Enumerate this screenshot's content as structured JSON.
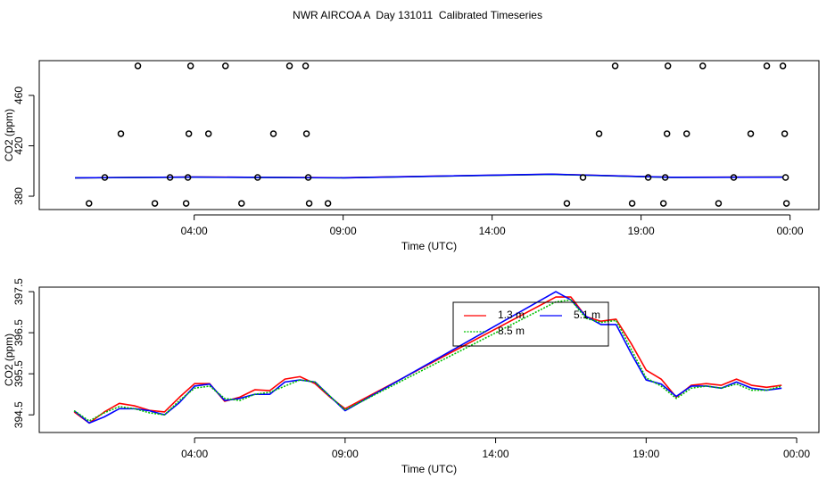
{
  "chart_data": [
    {
      "type": "scatter",
      "title": "NWR AIRCOA A  Day 131011  Calibrated Timeseries",
      "xlabel": "Time (UTC)",
      "ylabel": "CO2 (ppm)",
      "x": [
        2.11,
        3.88,
        5.05,
        7.2,
        7.74,
        18.13,
        19.9,
        21.07,
        23.22,
        23.76,
        1.54,
        3.82,
        4.48,
        6.66,
        7.77,
        17.59,
        19.87,
        20.53,
        22.68,
        23.82,
        1.0,
        3.19,
        3.79,
        6.13,
        7.83,
        17.05,
        19.24,
        19.81,
        22.11,
        23.85,
        0.47,
        2.68,
        3.73,
        5.59,
        7.86,
        8.49,
        16.51,
        18.7,
        19.75,
        21.6,
        23.88
      ],
      "values": [
        483.4,
        483.4,
        483.4,
        483.4,
        483.4,
        483.4,
        483.4,
        483.4,
        483.4,
        483.4,
        429.6,
        429.6,
        429.6,
        429.6,
        429.6,
        429.6,
        429.6,
        429.6,
        429.6,
        429.6,
        394.9,
        394.9,
        394.9,
        394.9,
        394.9,
        394.9,
        394.9,
        394.9,
        394.9,
        394.9,
        374.3,
        374.3,
        374.3,
        374.3,
        374.3,
        374.3,
        374.3,
        374.3,
        374.3,
        374.3,
        374.3
      ],
      "color": "#000000",
      "series": [
        {
          "color": "#ff0000",
          "x": [
            0,
            4,
            9,
            16,
            20,
            23.75
          ],
          "values": [
            394.6,
            395.2,
            394.7,
            397.4,
            395.0,
            395.2
          ]
        },
        {
          "color": "#00c000",
          "x": [
            0,
            4,
            9,
            16,
            20,
            23.75
          ],
          "values": [
            394.6,
            395.1,
            394.6,
            397.3,
            394.9,
            395.2
          ]
        },
        {
          "color": "#0000ff",
          "x": [
            0,
            4,
            9,
            16,
            20,
            23.75
          ],
          "values": [
            394.6,
            395.2,
            394.6,
            397.5,
            395.0,
            395.1
          ]
        }
      ],
      "xlim": [
        -1.2,
        24.97
      ],
      "ylim": [
        369.4,
        487.6
      ],
      "xticks": [
        {
          "value": 4,
          "label": "04:00"
        },
        {
          "value": 9,
          "label": "09:00"
        },
        {
          "value": 14,
          "label": "14:00"
        },
        {
          "value": 19,
          "label": "19:00"
        },
        {
          "value": 24,
          "label": "00:00"
        }
      ],
      "yticks": [
        380,
        420,
        460
      ]
    },
    {
      "type": "line",
      "xlabel": "Time (UTC)",
      "ylabel": "CO2 (ppm)",
      "x": [
        0,
        0.5,
        1,
        1.5,
        2,
        2.5,
        3,
        3.5,
        4,
        4.5,
        5,
        5.5,
        6,
        6.5,
        7,
        7.5,
        8,
        8.5,
        9,
        16,
        16.5,
        17,
        17.5,
        18,
        18.5,
        19,
        19.5,
        20,
        20.5,
        21,
        21.5,
        22,
        22.5,
        23,
        23.5
      ],
      "series": [
        {
          "name": "1.3 m",
          "color": "#ff0000",
          "linestyle": "solid",
          "values": [
            394.57,
            394.3,
            394.57,
            394.78,
            394.72,
            394.61,
            394.57,
            394.93,
            395.26,
            395.26,
            394.83,
            394.93,
            395.11,
            395.09,
            395.37,
            395.43,
            395.26,
            394.93,
            394.65,
            397.37,
            397.37,
            396.89,
            396.78,
            396.83,
            396.24,
            395.59,
            395.37,
            394.93,
            395.22,
            395.26,
            395.22,
            395.37,
            395.22,
            395.17,
            395.22
          ]
        },
        {
          "name": "5.1 m",
          "color": "#0000ff",
          "linestyle": "solid",
          "values": [
            394.6,
            394.3,
            394.45,
            394.65,
            394.65,
            394.6,
            394.5,
            394.8,
            395.2,
            395.25,
            394.85,
            394.9,
            395.0,
            395.0,
            395.3,
            395.35,
            395.3,
            394.95,
            394.6,
            397.5,
            397.3,
            396.9,
            396.7,
            396.7,
            396.0,
            395.35,
            395.25,
            394.95,
            395.2,
            395.2,
            395.15,
            395.3,
            395.15,
            395.1,
            395.15
          ]
        },
        {
          "name": "8.5 m",
          "color": "#00c000",
          "linestyle": "dotted",
          "values": [
            394.6,
            394.35,
            394.55,
            394.7,
            394.65,
            394.55,
            394.5,
            394.85,
            395.15,
            395.2,
            394.9,
            394.85,
            395.0,
            395.05,
            395.2,
            395.35,
            395.3,
            394.95,
            394.62,
            397.25,
            397.3,
            396.85,
            396.75,
            396.8,
            396.1,
            395.4,
            395.2,
            394.9,
            395.15,
            395.2,
            395.15,
            395.25,
            395.1,
            395.1,
            395.2
          ]
        }
      ],
      "xlim": [
        -1.16,
        24.74
      ],
      "ylim": [
        394.07,
        397.61
      ],
      "xticks": [
        {
          "value": 4,
          "label": "04:00"
        },
        {
          "value": 9,
          "label": "09:00"
        },
        {
          "value": 14,
          "label": "14:00"
        },
        {
          "value": 19,
          "label": "19:00"
        },
        {
          "value": 24,
          "label": "00:00"
        }
      ],
      "yticks": [
        394.5,
        395.5,
        396.5,
        397.5
      ],
      "legend": "top"
    }
  ]
}
